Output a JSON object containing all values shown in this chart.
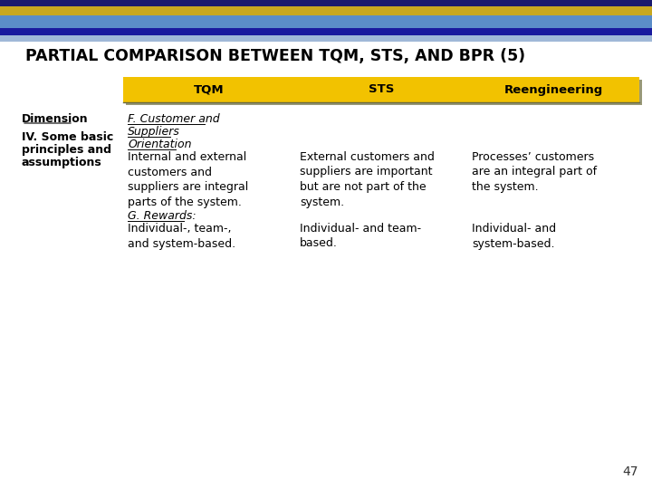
{
  "title": "PARTIAL COMPARISON BETWEEN TQM, STS, AND BPR (5)",
  "header_bg": "#F2C200",
  "col_headers": [
    "TQM",
    "STS",
    "Reengineering"
  ],
  "dim_label": "Dimension",
  "row_label_lines": [
    "IV. Some basic",
    "principles and",
    "assumptions"
  ],
  "col1_italic1": "F. Customer and",
  "col1_italic2": "Suppliers",
  "col1_italic3": "Orientation",
  "col1_body": "Internal and external\ncustomers and\nsuppliers are integral\nparts of the system.",
  "col1_rewards_italic": "G. Rewards:",
  "col1_rewards_body": "Individual-, team-,\nand system-based.",
  "col2_body": "External customers and\nsuppliers are important\nbut are not part of the\nsystem.",
  "col2_rewards_body": "Individual- and team-\nbased.",
  "col3_body": "Processes’ customers\nare an integral part of\nthe system.",
  "col3_rewards_body": "Individual- and\nsystem-based.",
  "page_number": "47",
  "bg_color": "#FFFFFF",
  "stripe_colors": [
    "#1A1A6E",
    "#C8A820",
    "#5B8DC8",
    "#1A1A9E",
    "#A0B8D8"
  ],
  "stripe_heights": [
    7,
    10,
    14,
    8,
    7
  ],
  "table_shadow_color": "#888888",
  "header_shadow": "#888888"
}
